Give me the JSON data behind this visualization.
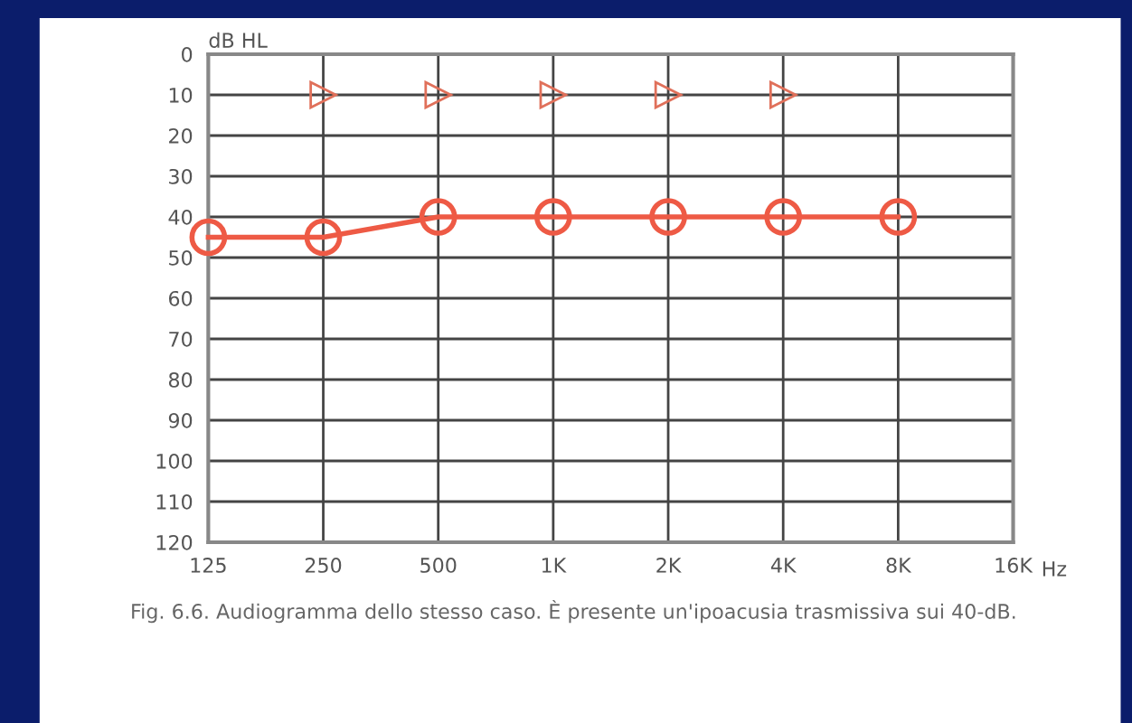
{
  "chart_data": {
    "type": "line",
    "categories": [
      "125",
      "250",
      "500",
      "1K",
      "2K",
      "4K",
      "8K",
      "16K"
    ],
    "xlabel": "Hz",
    "ylabel": "dB HL",
    "ylim": [
      120,
      0
    ],
    "yticks": [
      0,
      10,
      20,
      30,
      40,
      50,
      60,
      70,
      80,
      90,
      100,
      110,
      120
    ],
    "grid": true,
    "series": [
      {
        "color": "#ee5a45",
        "marker": "circle",
        "values": [
          45,
          45,
          40,
          40,
          40,
          40,
          40,
          null
        ]
      },
      {
        "type": "scatter",
        "color": "#e0705a",
        "marker": "triangle",
        "values": [
          null,
          10,
          10,
          10,
          10,
          10,
          null,
          null
        ]
      }
    ],
    "annotations": [
      "Fig. 6.6. Audiogramma dello stesso caso. È presente un'ipoacusia trasmissiva sui 40-dB."
    ]
  }
}
